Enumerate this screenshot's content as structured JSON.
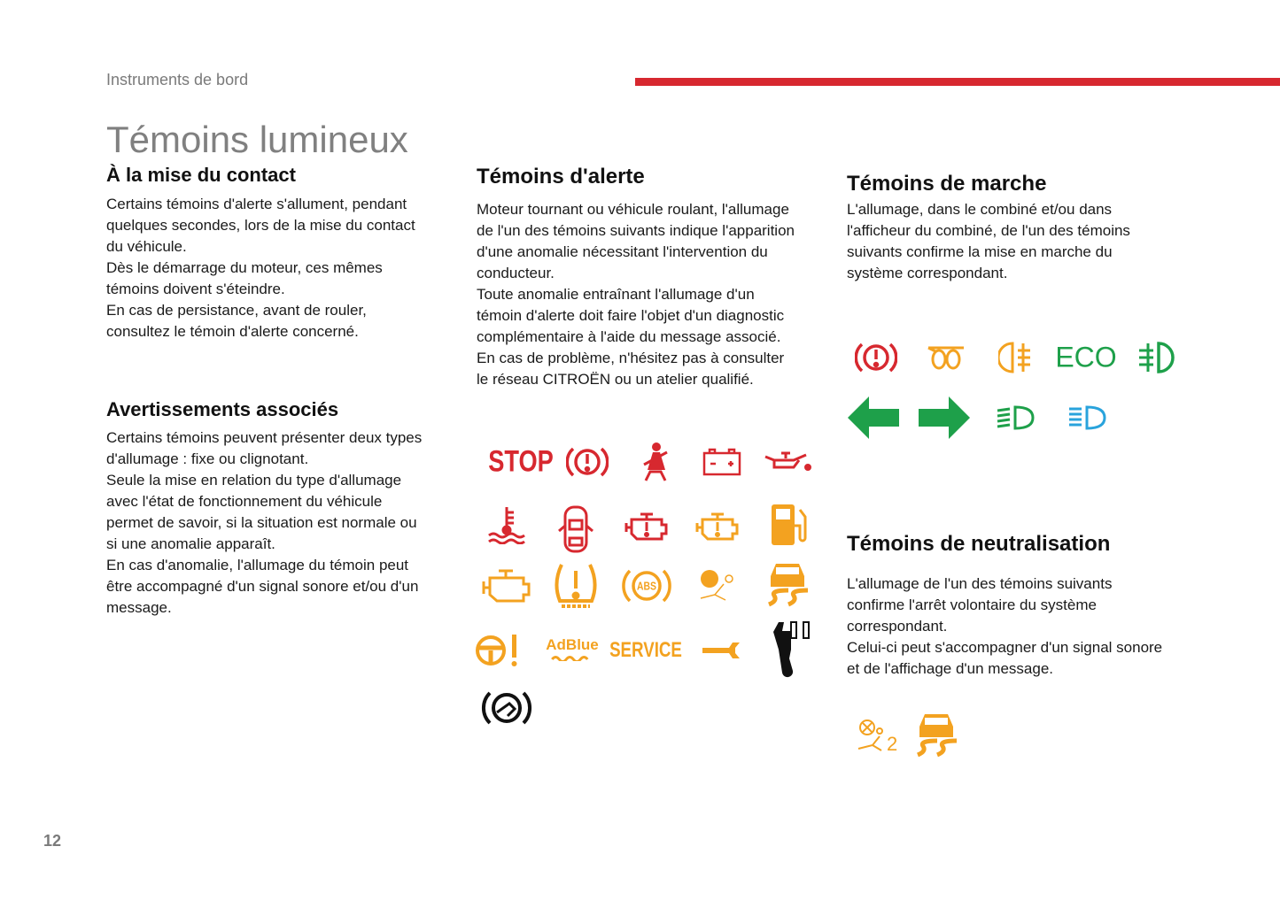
{
  "header": {
    "section": "Instruments de bord",
    "page_number": "12"
  },
  "title": "Témoins lumineux",
  "colors": {
    "red": "#d7282f",
    "orange": "#f3a220",
    "green": "#1ea04a",
    "blue": "#29a3dc",
    "black": "#111111"
  },
  "mise_du_contact": {
    "heading": "À la mise du contact",
    "lines": [
      "Certains témoins d'alerte s'allument, pendant",
      "quelques secondes, lors de la mise du contact",
      "du véhicule.",
      "Dès le démarrage du moteur, ces mêmes",
      "témoins doivent s'éteindre.",
      "En cas de persistance, avant de rouler,",
      "consultez le témoin d'alerte concerné."
    ]
  },
  "avertissements": {
    "heading": "Avertissements associés",
    "lines": [
      "Certains témoins peuvent présenter deux types",
      "d'allumage : fixe ou clignotant.",
      "Seule la mise en relation du type d'allumage",
      "avec l'état de fonctionnement du véhicule",
      "permet de savoir, si la situation est normale ou",
      "si une anomalie apparaît.",
      "En cas d'anomalie, l'allumage du témoin peut",
      "être accompagné d'un signal sonore et/ou d'un",
      "message."
    ]
  },
  "alerte": {
    "heading": "Témoins d'alerte",
    "lines": [
      "Moteur tournant ou véhicule roulant, l'allumage",
      "de l'un des témoins suivants indique l'apparition",
      "d'une anomalie nécessitant l'intervention du",
      "conducteur.",
      "Toute anomalie entraînant l'allumage d'un",
      "témoin d'alerte doit faire l'objet d'un diagnostic",
      "complémentaire à l'aide du message associé.",
      "En cas de problème, n'hésitez pas à consulter",
      "le réseau CITROËN ou un atelier qualifié."
    ],
    "icons": {
      "stop": "STOP",
      "abs": "ABS",
      "adblue": "AdBlue",
      "service": "SERVICE"
    }
  },
  "marche": {
    "heading": "Témoins de marche",
    "lines": [
      "L'allumage, dans le combiné et/ou dans",
      "l'afficheur du combiné, de l'un des témoins",
      "suivants confirme la mise en marche du",
      "système correspondant."
    ],
    "icons": {
      "eco": "ECO"
    }
  },
  "neutralisation": {
    "heading": "Témoins de neutralisation",
    "lines": [
      "L'allumage de l'un des témoins suivants",
      "confirme l'arrêt volontaire du système",
      "correspondant.",
      "Celui-ci peut s'accompagner d'un signal sonore",
      "et de l'affichage d'un message."
    ]
  }
}
